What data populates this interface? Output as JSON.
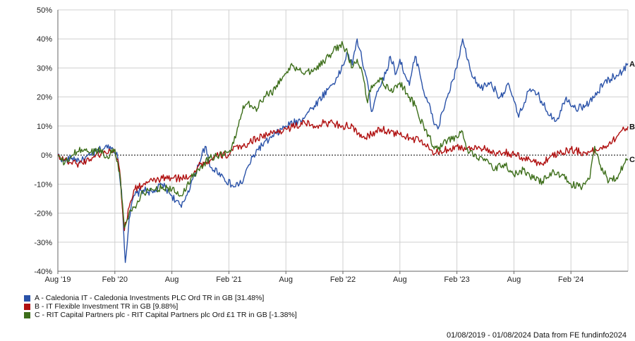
{
  "chart_data": {
    "type": "line",
    "x_ticks": [
      "Aug '19",
      "Feb '20",
      "Aug",
      "Feb '21",
      "Aug",
      "Feb '22",
      "Aug",
      "Feb '23",
      "Aug",
      "Feb '24"
    ],
    "y_ticks": [
      "50%",
      "40%",
      "30%",
      "20%",
      "10%",
      "0%",
      "-10%",
      "-20%",
      "-30%",
      "-40%"
    ],
    "ylim": [
      -40,
      50
    ],
    "xlim_months": [
      0,
      60
    ],
    "grid": true,
    "zero_line": "dotted",
    "series": [
      {
        "name": "A - Caledonia IT - Caledonia Investments PLC Ord TR in GB [31.48%]",
        "end_label": "A",
        "color": "#2a52a8",
        "points": [
          [
            0,
            0
          ],
          [
            0.7,
            -2
          ],
          [
            1.5,
            -1
          ],
          [
            2.5,
            -2
          ],
          [
            3.5,
            0
          ],
          [
            4.5,
            2
          ],
          [
            5.5,
            3
          ],
          [
            6.2,
            1
          ],
          [
            6.7,
            -12
          ],
          [
            7.1,
            -37
          ],
          [
            7.5,
            -22
          ],
          [
            8,
            -14
          ],
          [
            9,
            -12
          ],
          [
            10,
            -13
          ],
          [
            11,
            -10
          ],
          [
            12,
            -14
          ],
          [
            13,
            -18
          ],
          [
            13.5,
            -14
          ],
          [
            14.5,
            -6
          ],
          [
            15.5,
            3
          ],
          [
            16,
            -4
          ],
          [
            17,
            -6
          ],
          [
            17.5,
            -8
          ],
          [
            18.5,
            -11
          ],
          [
            19.5,
            -9
          ],
          [
            20,
            -4
          ],
          [
            21,
            2
          ],
          [
            22.5,
            6
          ],
          [
            24,
            10
          ],
          [
            25.5,
            12
          ],
          [
            27,
            17
          ],
          [
            28.5,
            23
          ],
          [
            29.5,
            27
          ],
          [
            30.5,
            35
          ],
          [
            31,
            31
          ],
          [
            31.5,
            40
          ],
          [
            32,
            33
          ],
          [
            32.6,
            25
          ],
          [
            33,
            15
          ],
          [
            33.6,
            22
          ],
          [
            34.5,
            28
          ],
          [
            35,
            34
          ],
          [
            35.6,
            28
          ],
          [
            36,
            33
          ],
          [
            36.6,
            27
          ],
          [
            37,
            24
          ],
          [
            37.6,
            34
          ],
          [
            38,
            30
          ],
          [
            38.5,
            22
          ],
          [
            39,
            18
          ],
          [
            39.5,
            12
          ],
          [
            40,
            9
          ],
          [
            40.5,
            15
          ],
          [
            41,
            20
          ],
          [
            41.6,
            26
          ],
          [
            42,
            30
          ],
          [
            42.6,
            40
          ],
          [
            43,
            34
          ],
          [
            43.6,
            27
          ],
          [
            44.5,
            23
          ],
          [
            45.5,
            25
          ],
          [
            46.5,
            20
          ],
          [
            47.5,
            24
          ],
          [
            48.5,
            13
          ],
          [
            49.5,
            22
          ],
          [
            50.5,
            21
          ],
          [
            51.5,
            15
          ],
          [
            52.5,
            12
          ],
          [
            53.5,
            20
          ],
          [
            54.5,
            16
          ],
          [
            55.5,
            17
          ],
          [
            56.5,
            20
          ],
          [
            57.5,
            25
          ],
          [
            58.5,
            27
          ],
          [
            59.5,
            29
          ],
          [
            60,
            31.48
          ]
        ]
      },
      {
        "name": "B - IT Flexible Investment TR in GB [9.88%]",
        "end_label": "B",
        "color": "#b01010",
        "points": [
          [
            0,
            0
          ],
          [
            1,
            -2
          ],
          [
            2,
            -3
          ],
          [
            3,
            -2
          ],
          [
            4,
            0
          ],
          [
            5,
            1
          ],
          [
            6,
            2
          ],
          [
            6.5,
            -5
          ],
          [
            7,
            -26
          ],
          [
            7.5,
            -18
          ],
          [
            8,
            -12
          ],
          [
            9,
            -10
          ],
          [
            10,
            -9
          ],
          [
            11,
            -8
          ],
          [
            12,
            -8
          ],
          [
            13,
            -8
          ],
          [
            14,
            -7
          ],
          [
            15,
            -3
          ],
          [
            16,
            -2
          ],
          [
            17,
            0
          ],
          [
            18,
            0
          ],
          [
            18.5,
            3
          ],
          [
            19,
            2
          ],
          [
            19.5,
            3
          ],
          [
            20,
            4
          ],
          [
            21,
            6
          ],
          [
            22,
            7
          ],
          [
            23,
            8
          ],
          [
            24,
            9
          ],
          [
            25,
            10
          ],
          [
            26,
            11
          ],
          [
            27,
            10
          ],
          [
            28,
            11
          ],
          [
            29,
            11
          ],
          [
            30,
            10
          ],
          [
            31,
            10
          ],
          [
            31.5,
            7
          ],
          [
            32,
            6
          ],
          [
            33,
            7
          ],
          [
            34,
            9
          ],
          [
            35,
            8
          ],
          [
            36,
            7
          ],
          [
            37,
            6
          ],
          [
            38,
            5
          ],
          [
            39,
            3
          ],
          [
            39.5,
            0
          ],
          [
            40,
            1
          ],
          [
            41,
            2
          ],
          [
            42,
            3
          ],
          [
            43,
            2
          ],
          [
            44,
            3
          ],
          [
            45,
            2
          ],
          [
            46,
            0
          ],
          [
            47,
            1
          ],
          [
            48,
            0
          ],
          [
            49,
            -1
          ],
          [
            50,
            -2
          ],
          [
            51,
            -3
          ],
          [
            52,
            0
          ],
          [
            53,
            1
          ],
          [
            54,
            2
          ],
          [
            55,
            1
          ],
          [
            56,
            1
          ],
          [
            57,
            2
          ],
          [
            58,
            4
          ],
          [
            59,
            7
          ],
          [
            60,
            9.88
          ]
        ]
      },
      {
        "name": "C - RIT Capital Partners plc - RIT Capital Partners plc Ord £1 TR in GB [-1.38%]",
        "end_label": "C",
        "color": "#3d6e1a",
        "points": [
          [
            0,
            0
          ],
          [
            0.7,
            -3
          ],
          [
            1.5,
            0
          ],
          [
            2.5,
            2
          ],
          [
            3.5,
            1
          ],
          [
            4.5,
            2
          ],
          [
            5,
            -1
          ],
          [
            6,
            2
          ],
          [
            6.5,
            -6
          ],
          [
            7,
            -25
          ],
          [
            7.5,
            -20
          ],
          [
            8,
            -18
          ],
          [
            9,
            -13
          ],
          [
            10,
            -12
          ],
          [
            11,
            -11
          ],
          [
            12,
            -12
          ],
          [
            13,
            -14
          ],
          [
            14,
            -8
          ],
          [
            15,
            -4
          ],
          [
            16,
            -1
          ],
          [
            17,
            0
          ],
          [
            18,
            1
          ],
          [
            18.5,
            4
          ],
          [
            19,
            10
          ],
          [
            19.5,
            17
          ],
          [
            20,
            18
          ],
          [
            21,
            16
          ],
          [
            22,
            22
          ],
          [
            22.5,
            21
          ],
          [
            23,
            24
          ],
          [
            24,
            28
          ],
          [
            24.5,
            31
          ],
          [
            25,
            29
          ],
          [
            25.5,
            30
          ],
          [
            26,
            28
          ],
          [
            27,
            30
          ],
          [
            28,
            32
          ],
          [
            29,
            36
          ],
          [
            30,
            38
          ],
          [
            30.5,
            35
          ],
          [
            31,
            30
          ],
          [
            31.5,
            33
          ],
          [
            32,
            29
          ],
          [
            32.6,
            18
          ],
          [
            33,
            24
          ],
          [
            34,
            26
          ],
          [
            35,
            22
          ],
          [
            36,
            25
          ],
          [
            37,
            20
          ],
          [
            37.6,
            17
          ],
          [
            38,
            13
          ],
          [
            38.5,
            10
          ],
          [
            39,
            7
          ],
          [
            39.5,
            3
          ],
          [
            40,
            2
          ],
          [
            41,
            5
          ],
          [
            42,
            6
          ],
          [
            42.6,
            8
          ],
          [
            43,
            2
          ],
          [
            44,
            0
          ],
          [
            45,
            -2
          ],
          [
            46,
            -5
          ],
          [
            47,
            -3
          ],
          [
            48,
            -7
          ],
          [
            49,
            -5
          ],
          [
            50,
            -8
          ],
          [
            51,
            -9
          ],
          [
            52,
            -6
          ],
          [
            53,
            -7
          ],
          [
            54,
            -10
          ],
          [
            55,
            -11
          ],
          [
            56,
            -8
          ],
          [
            56.5,
            3
          ],
          [
            57,
            -3
          ],
          [
            58,
            -9
          ],
          [
            59,
            -7
          ],
          [
            59.6,
            -3
          ],
          [
            60,
            -1.38
          ]
        ]
      }
    ]
  },
  "footer": "01/08/2019 - 01/08/2024 Data from FE fundinfo2024"
}
